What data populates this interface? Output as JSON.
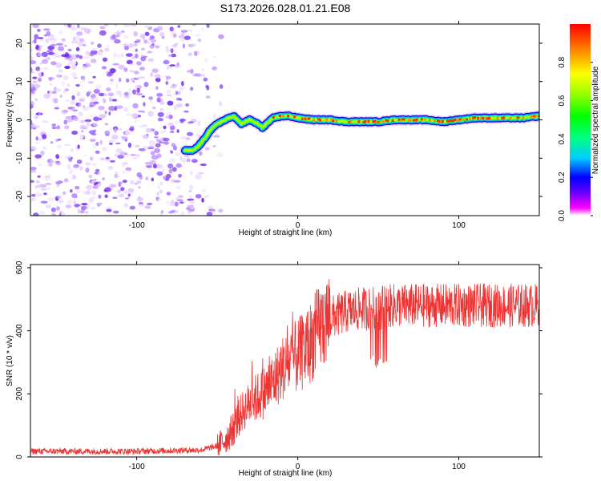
{
  "title": "S173.2026.028.01.21.E08",
  "chart_data": [
    {
      "type": "heatmap",
      "name": "spectrogram",
      "xlabel": "Height of straight line (km)",
      "ylabel": "Frequency (Hz)",
      "xlim": [
        -166,
        150
      ],
      "ylim": [
        -25,
        25
      ],
      "xticks": [
        -100,
        0,
        100
      ],
      "yticks": [
        -20,
        -10,
        0,
        10,
        20
      ],
      "noise_region_x": [
        -166,
        -55
      ],
      "ridge": {
        "x": [
          -70,
          -65,
          -62,
          -58,
          -55,
          -50,
          -45,
          -40,
          -35,
          -30,
          -25,
          -22,
          -18,
          -15,
          -10,
          -5,
          0,
          10,
          20,
          30,
          40,
          50,
          60,
          70,
          80,
          90,
          100,
          110,
          120,
          130,
          140,
          150
        ],
        "freq": [
          -8,
          -8,
          -7,
          -5,
          -3,
          -1,
          0,
          1,
          -1,
          0,
          -1,
          -2,
          -0.5,
          0.5,
          1,
          1,
          0.5,
          0,
          0,
          -0.5,
          -0.5,
          -0.5,
          0,
          0,
          0,
          -0.5,
          0,
          0.5,
          0.5,
          0.5,
          0.5,
          1
        ]
      },
      "colorbar": {
        "label": "Normalized spectral amplitude",
        "range": [
          0,
          1
        ],
        "ticks": [
          0.0,
          0.2,
          0.4,
          0.6,
          0.8
        ],
        "tick_labels": [
          "0.0",
          "0.2",
          "0.4",
          "0.6",
          "0.8"
        ],
        "colormap": [
          "#ffffff",
          "#ff00ff",
          "#6600ff",
          "#0000ff",
          "#00ccff",
          "#00ff88",
          "#00ff00",
          "#88ff00",
          "#ffff00",
          "#ff8800",
          "#ff0000"
        ]
      }
    },
    {
      "type": "line",
      "name": "snr",
      "xlabel": "Height of straight line (km)",
      "ylabel": "SNR (10 * v/v)",
      "xlim": [
        -166,
        150
      ],
      "ylim": [
        0,
        610
      ],
      "xticks": [
        -100,
        0,
        100
      ],
      "yticks": [
        0,
        200,
        400,
        600
      ],
      "color": "#ee3333",
      "trend": {
        "x": [
          -166,
          -100,
          -60,
          -50,
          -45,
          -40,
          -35,
          -30,
          -25,
          -20,
          -15,
          -10,
          -5,
          0,
          5,
          10,
          15,
          20,
          25,
          30,
          40,
          50,
          60,
          80,
          100,
          120,
          150
        ],
        "y": [
          18,
          18,
          22,
          35,
          55,
          90,
          140,
          170,
          190,
          210,
          240,
          280,
          300,
          320,
          340,
          380,
          420,
          440,
          450,
          460,
          470,
          470,
          480,
          480,
          480,
          480,
          480
        ]
      }
    }
  ],
  "colors": {
    "snr_line": "#ee3333",
    "text": "#000000"
  }
}
